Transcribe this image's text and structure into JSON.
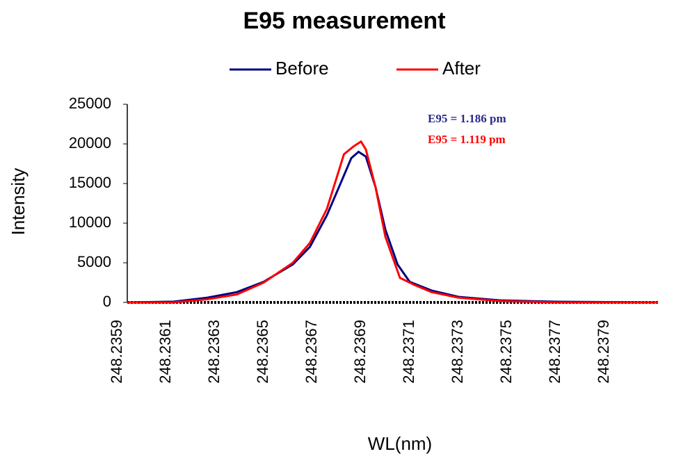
{
  "chart_data": {
    "type": "line",
    "title": "E95 measurement",
    "x_label": "WL(nm)",
    "y_label": "Intensity",
    "xlim": [
      248.23594,
      248.23812
    ],
    "xticks": [
      248.2359,
      248.2361,
      248.2363,
      248.2365,
      248.2367,
      248.2369,
      248.2371,
      248.2373,
      248.2375,
      248.2377,
      248.2379
    ],
    "ylim": [
      0,
      25000
    ],
    "yticks": [
      0,
      5000,
      10000,
      15000,
      20000,
      25000
    ],
    "annotations": [
      {
        "text": "E95 = 1.186 pm",
        "color": "#2a2a8c"
      },
      {
        "text": "E95 = 1.119 pm",
        "color": "#ff0000"
      }
    ],
    "series": [
      {
        "name": "Before",
        "color": "#000080",
        "x": [
          248.23594,
          248.23613,
          248.23627,
          248.23639,
          248.2365,
          248.23662,
          248.23669,
          248.23676,
          248.23682,
          248.23686,
          248.23689,
          248.23692,
          248.23696,
          248.237,
          248.23705,
          248.2371,
          248.23719,
          248.2373,
          248.23747,
          248.2377,
          248.23812
        ],
        "values": [
          0,
          100,
          600,
          1300,
          2600,
          4800,
          7000,
          11000,
          15300,
          18200,
          19000,
          18400,
          14500,
          9200,
          4800,
          2600,
          1500,
          700,
          260,
          90,
          0
        ]
      },
      {
        "name": "After",
        "color": "#ff0000",
        "x": [
          248.23594,
          248.23613,
          248.23627,
          248.23639,
          248.2365,
          248.23662,
          248.23669,
          248.23676,
          248.23683,
          248.23687,
          248.2369,
          248.23692,
          248.23696,
          248.237,
          248.23706,
          248.23712,
          248.23719,
          248.2373,
          248.23747,
          248.2377,
          248.23812
        ],
        "values": [
          0,
          0,
          400,
          1000,
          2500,
          5000,
          7500,
          11800,
          18700,
          19700,
          20300,
          19300,
          14500,
          8300,
          3100,
          2200,
          1300,
          600,
          180,
          0,
          0
        ]
      }
    ]
  }
}
